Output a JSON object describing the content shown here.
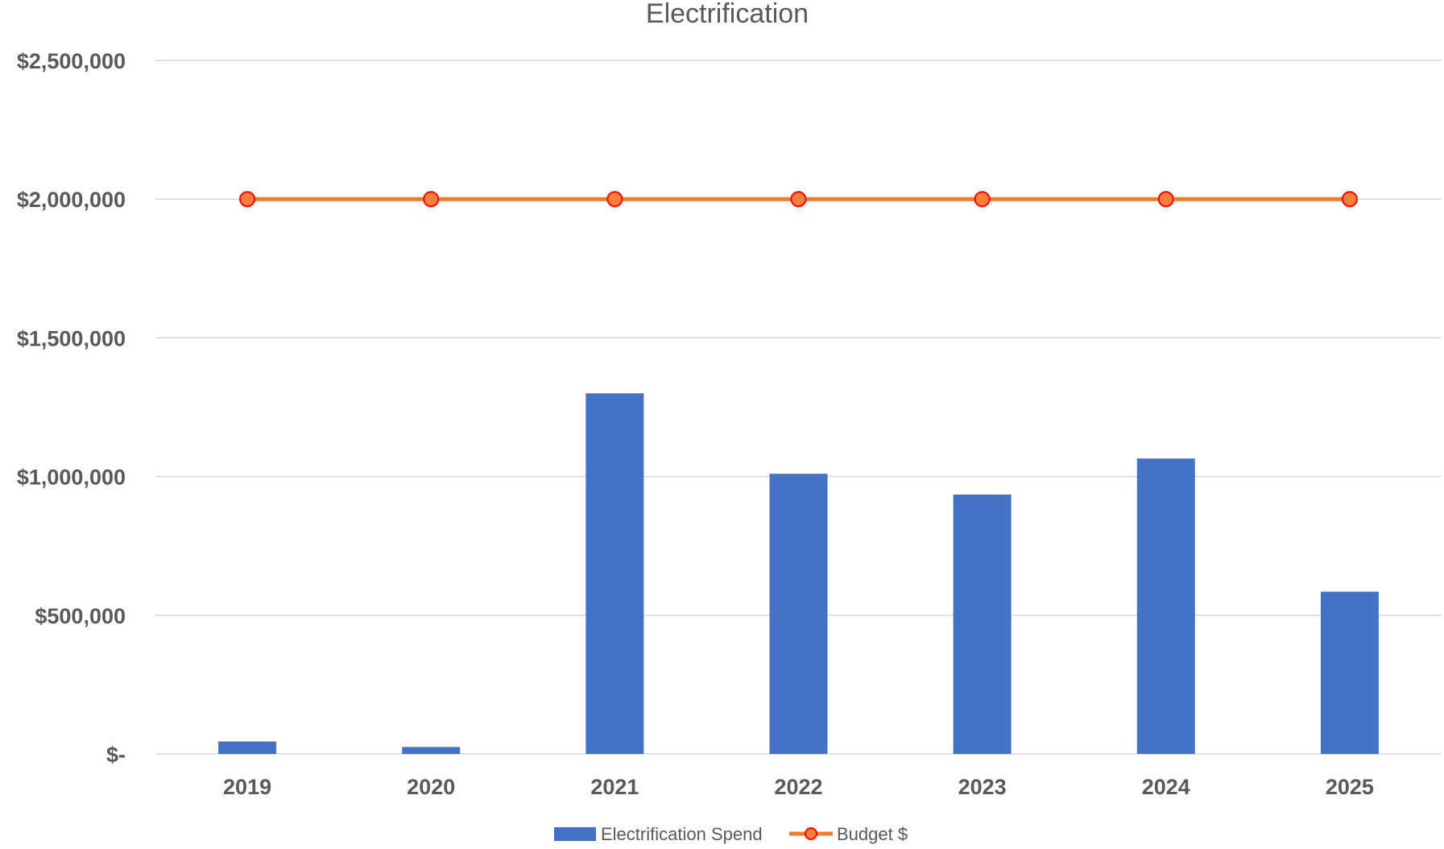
{
  "chart_data": {
    "type": "bar",
    "title": "Electrification",
    "categories": [
      "2019",
      "2020",
      "2021",
      "2022",
      "2023",
      "2024",
      "2025"
    ],
    "series": [
      {
        "name": "Electrification Spend",
        "type": "bar",
        "color": "#4472c4",
        "values": [
          45000,
          25000,
          1300000,
          1010000,
          935000,
          1065000,
          585000
        ]
      },
      {
        "name": "Budget $",
        "type": "line",
        "color": "#ed7d31",
        "marker_fill": "#f47f3a",
        "marker_stroke": "#ff0000",
        "values": [
          2000000,
          2000000,
          2000000,
          2000000,
          2000000,
          2000000,
          2000000
        ]
      }
    ],
    "ylim": [
      0,
      2500000
    ],
    "y_ticks": [
      0,
      500000,
      1000000,
      1500000,
      2000000,
      2500000
    ],
    "y_tick_labels": [
      "$-",
      "$500,000",
      "$1,000,000",
      "$1,500,000",
      "$2,000,000",
      "$2,500,000"
    ],
    "xlabel": "",
    "ylabel": "",
    "grid": true,
    "legend": "bottom"
  }
}
